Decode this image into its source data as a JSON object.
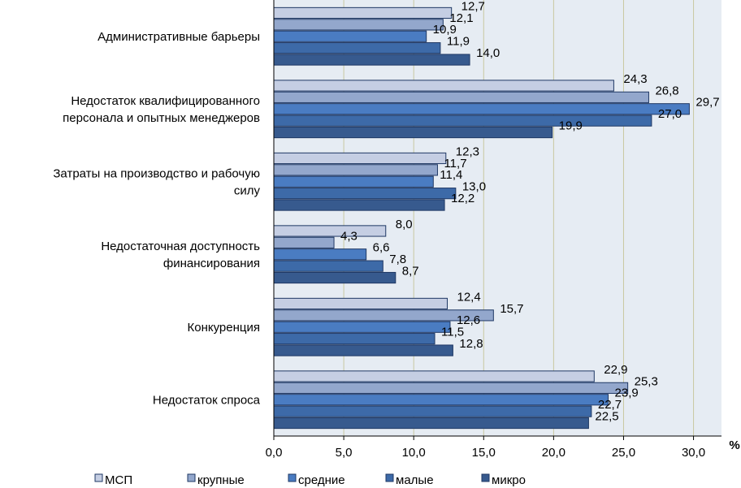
{
  "chart_data": {
    "type": "bar",
    "orientation": "horizontal",
    "categories": [
      [
        "Административные барьеры"
      ],
      [
        "Недостаток квалифицированного",
        "персонала и опытных менеджеров"
      ],
      [
        "Затраты на производство и рабочую",
        "силу"
      ],
      [
        "Недостаточная доступность",
        "финансирования"
      ],
      [
        "Конкуренция"
      ],
      [
        "Недостаток спроса"
      ]
    ],
    "series": [
      {
        "name": "МСП",
        "color": "#c5cee3",
        "values": [
          12.7,
          24.3,
          12.3,
          8.0,
          12.4,
          22.9
        ],
        "labels": [
          "12,7",
          "24,3",
          "12,3",
          "8,0",
          "12,4",
          "22,9"
        ]
      },
      {
        "name": "крупные",
        "color": "#93a7cc",
        "values": [
          12.1,
          26.8,
          11.7,
          4.3,
          15.7,
          25.3
        ],
        "labels": [
          "12,1",
          "26,8",
          "11,7",
          "4,3",
          "15,7",
          "25,3"
        ]
      },
      {
        "name": "средние",
        "color": "#4a7cc2",
        "values": [
          10.9,
          29.7,
          11.4,
          6.6,
          12.6,
          23.9
        ],
        "labels": [
          "10,9",
          "29,7",
          "11,4",
          "6,6",
          "12,6",
          "23,9"
        ]
      },
      {
        "name": "малые",
        "color": "#3d6aa8",
        "values": [
          11.9,
          27.0,
          13.0,
          7.8,
          11.5,
          22.7
        ],
        "labels": [
          "11,9",
          "27,0",
          "13,0",
          "7,8",
          "11,5",
          "22,7"
        ]
      },
      {
        "name": "микро",
        "color": "#375a8e",
        "values": [
          14.0,
          19.9,
          12.2,
          8.7,
          12.8,
          22.5
        ],
        "labels": [
          "14,0",
          "19,9",
          "12,2",
          "8,7",
          "12,8",
          "22,5"
        ]
      }
    ],
    "xlim": [
      0,
      32
    ],
    "xticks": [
      0,
      5,
      10,
      15,
      20,
      25,
      30
    ],
    "xtick_labels": [
      "0,0",
      "5,0",
      "10,0",
      "15,0",
      "20,0",
      "25,0",
      "30,0"
    ],
    "unit_label": "%",
    "grid": true,
    "legend_position": "bottom"
  }
}
